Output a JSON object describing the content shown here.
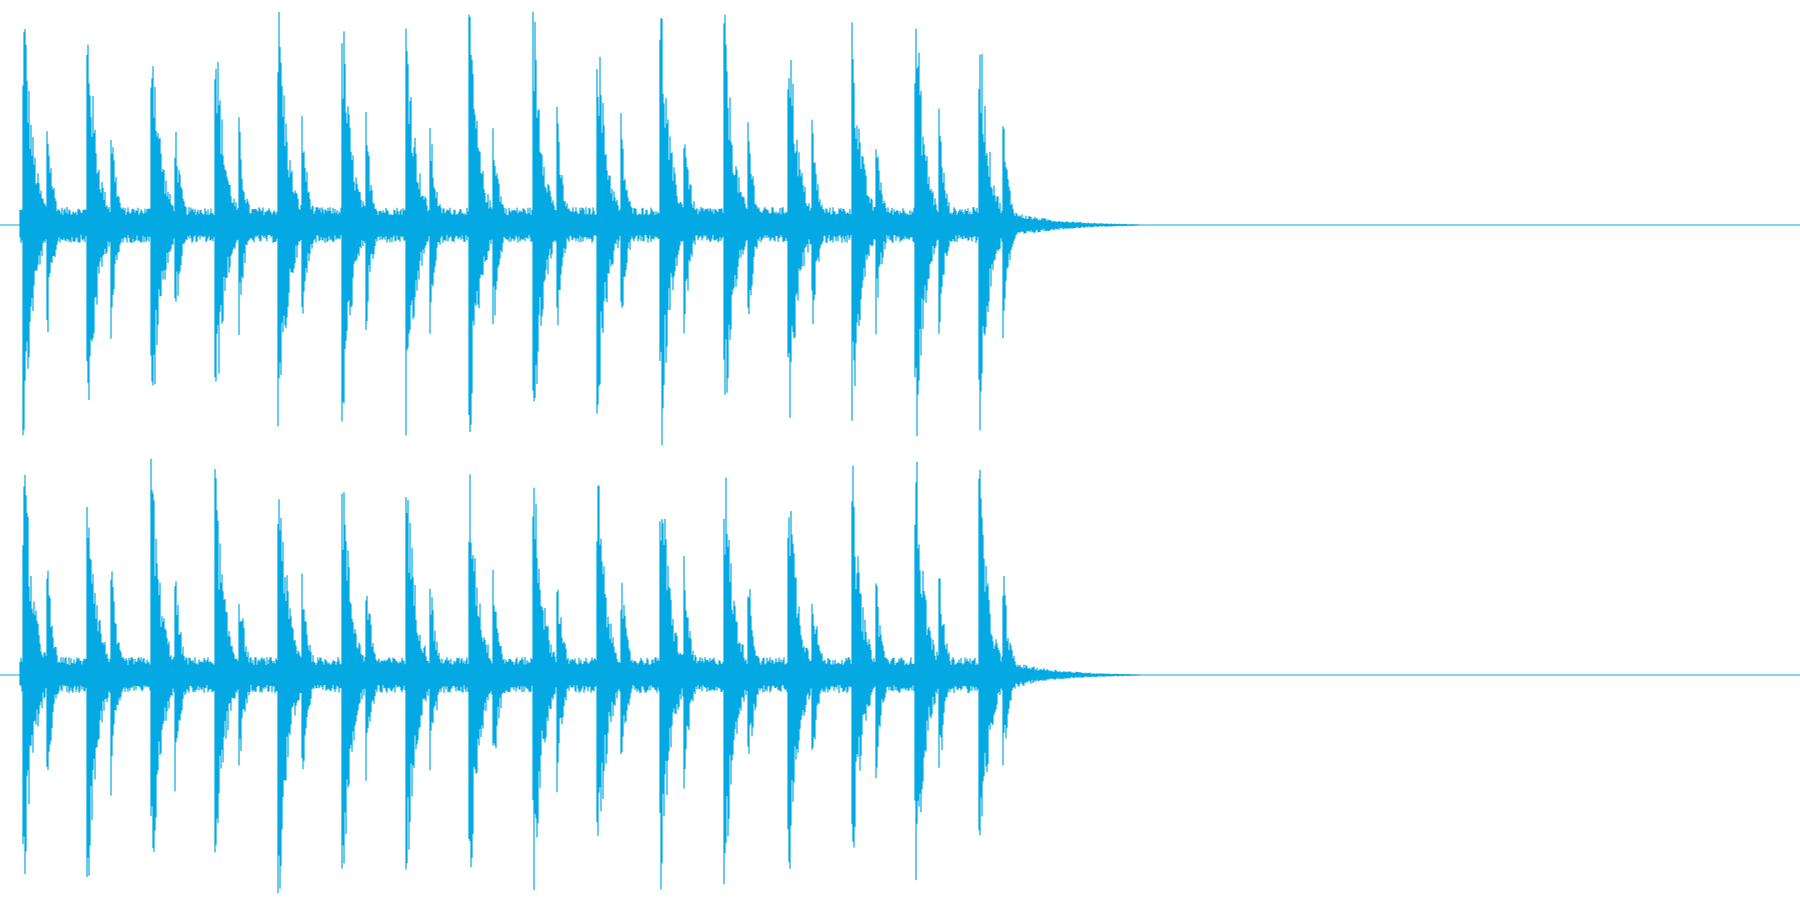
{
  "waveform": {
    "color": "#04a9e3"
  }
}
